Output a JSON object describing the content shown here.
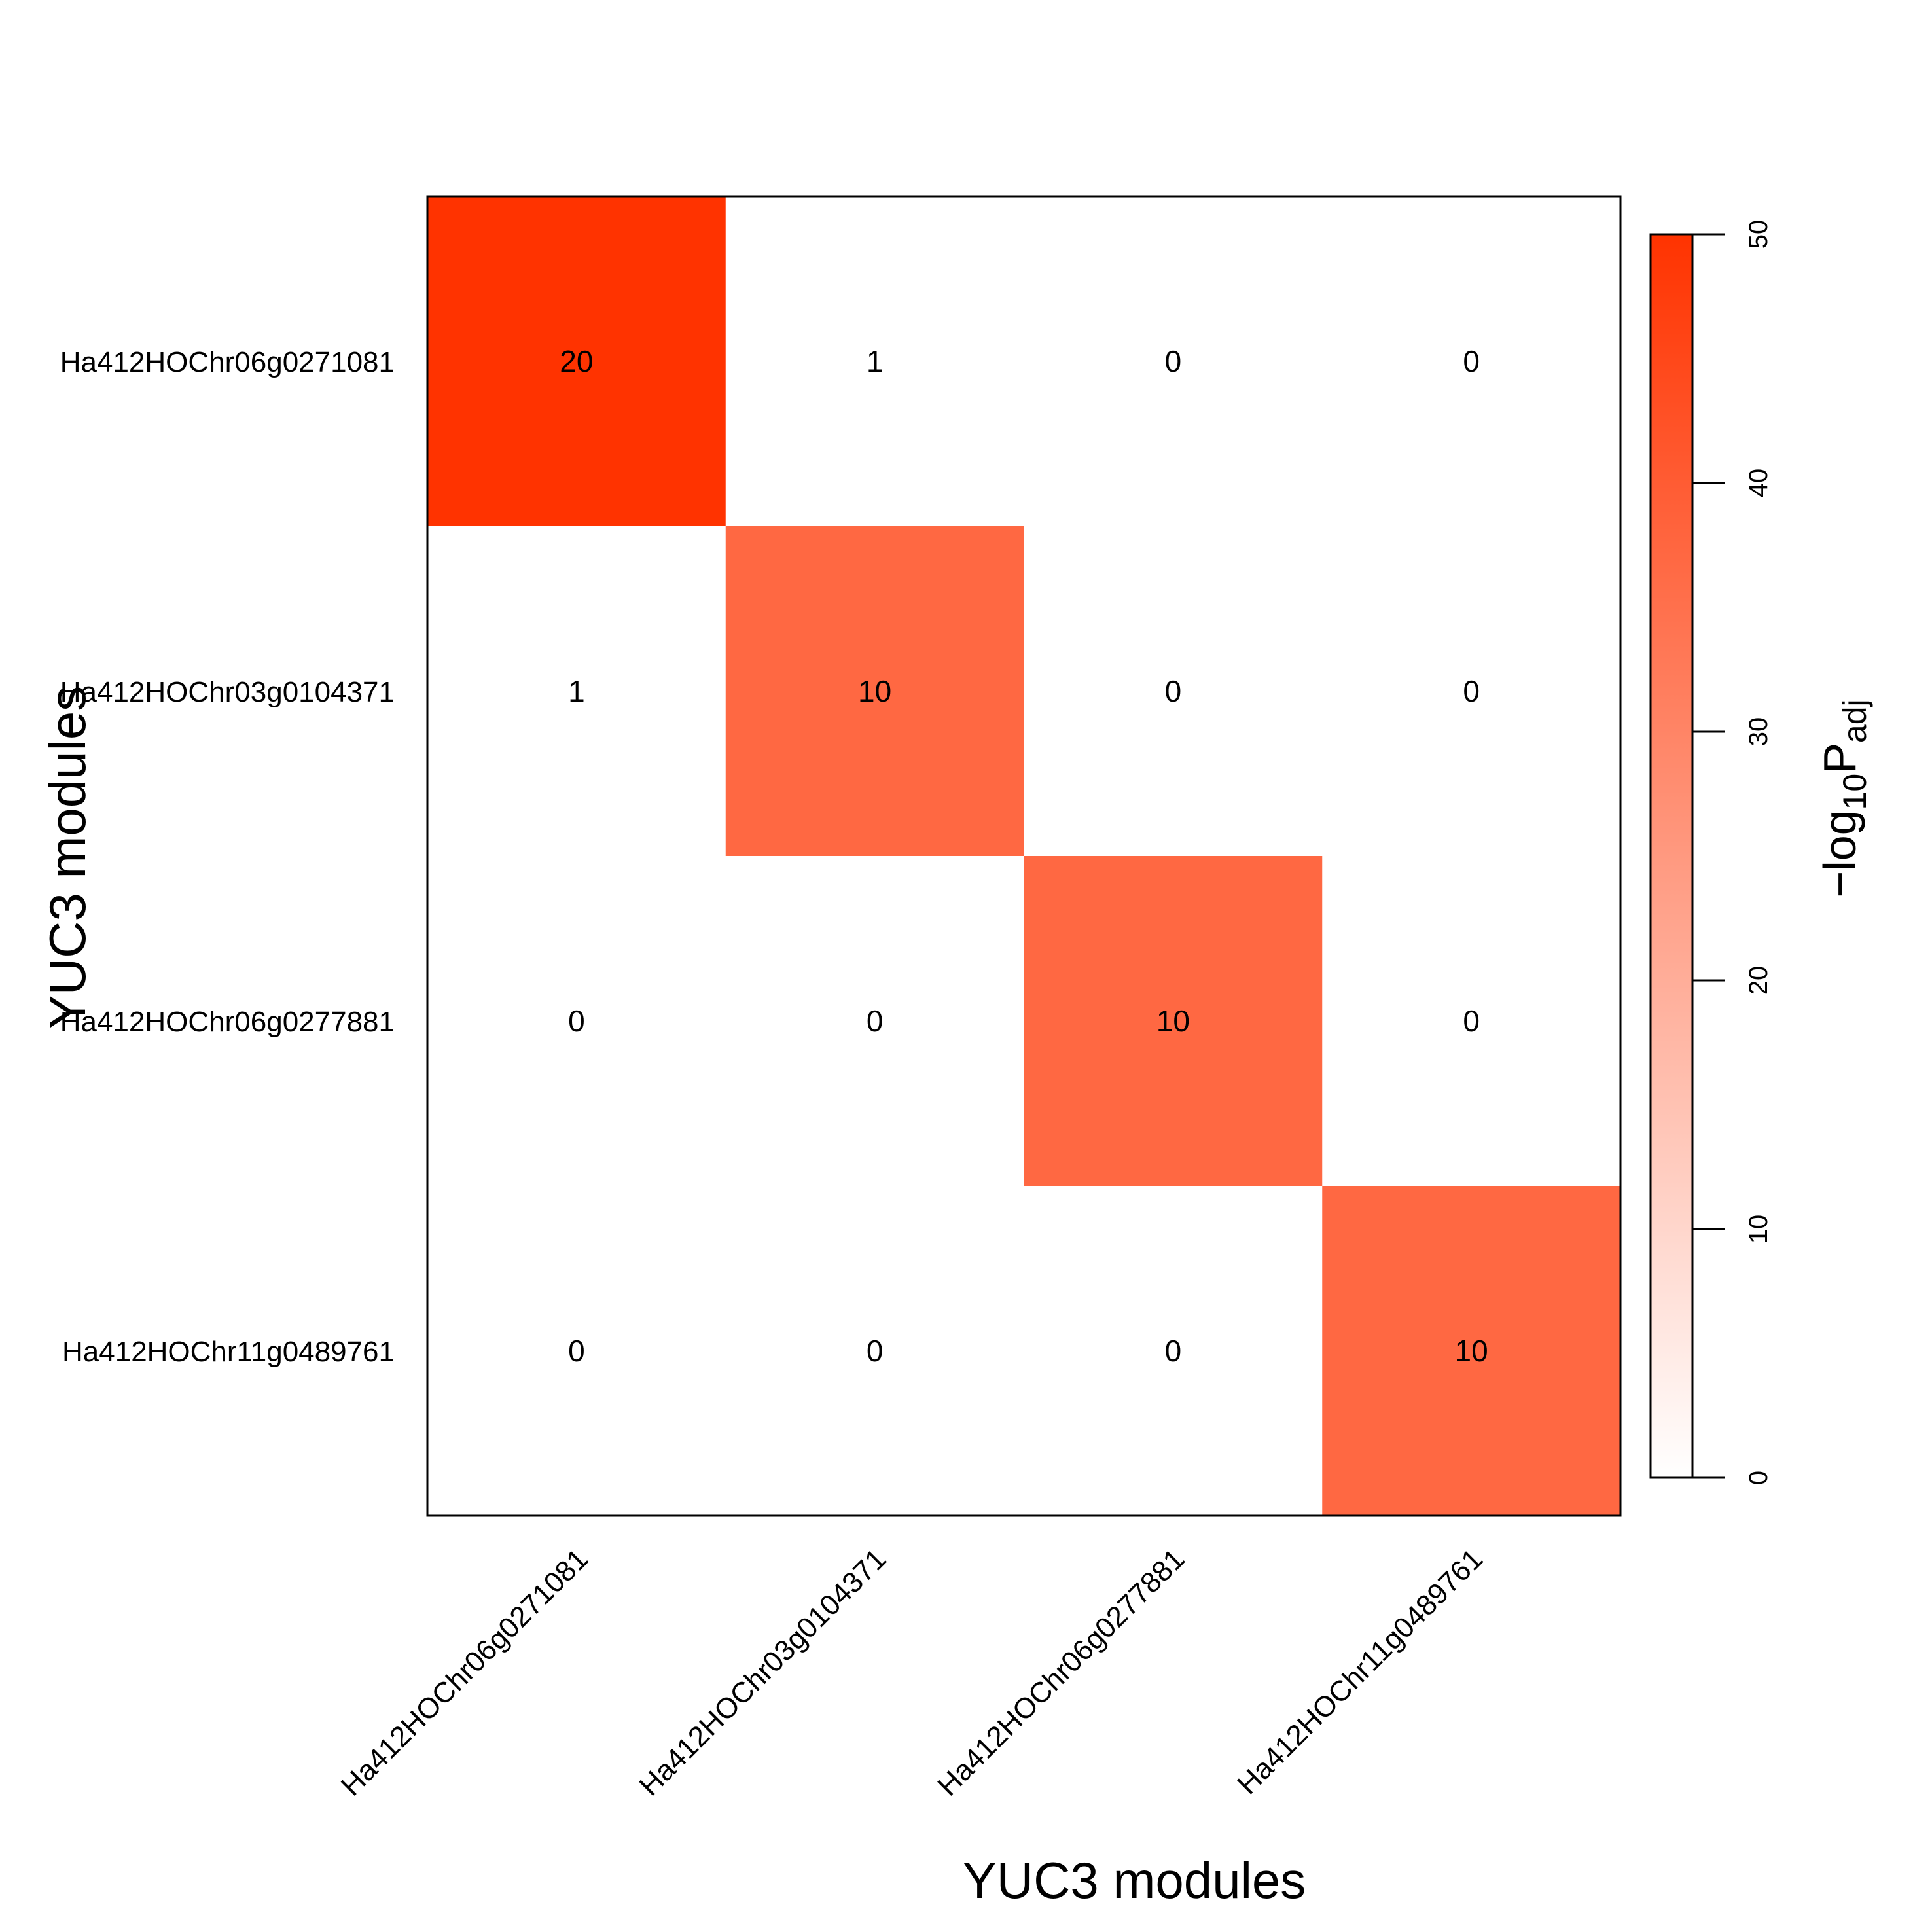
{
  "chart_data": {
    "type": "heatmap",
    "title": "",
    "xlabel": "YUC3 modules",
    "ylabel": "YUC3 modules",
    "x_categories": [
      "Ha412HOChr06g0271081",
      "Ha412HOChr03g0104371",
      "Ha412HOChr06g0277881",
      "Ha412HOChr11g0489761"
    ],
    "y_categories": [
      "Ha412HOChr06g0271081",
      "Ha412HOChr03g0104371",
      "Ha412HOChr06g0277881",
      "Ha412HOChr11g0489761"
    ],
    "cell_text": [
      [
        "20",
        "1",
        "0",
        "0"
      ],
      [
        "1",
        "10",
        "0",
        "0"
      ],
      [
        "0",
        "0",
        "10",
        "0"
      ],
      [
        "0",
        "0",
        "0",
        "10"
      ]
    ],
    "values": [
      [
        50,
        0,
        0,
        0
      ],
      [
        0,
        37,
        0,
        0
      ],
      [
        0,
        0,
        37,
        0
      ],
      [
        0,
        0,
        0,
        37
      ]
    ],
    "colorbar": {
      "title_prefix": "−log",
      "title_subscript": "10",
      "title_main": "P",
      "title_main_subscript": "adj",
      "range": [
        0,
        50
      ],
      "ticks": [
        "0",
        "10",
        "20",
        "30",
        "40",
        "50"
      ],
      "color_low": "#FFFFFF",
      "color_high": "#FF3300"
    },
    "grid": false,
    "legend": "right"
  }
}
